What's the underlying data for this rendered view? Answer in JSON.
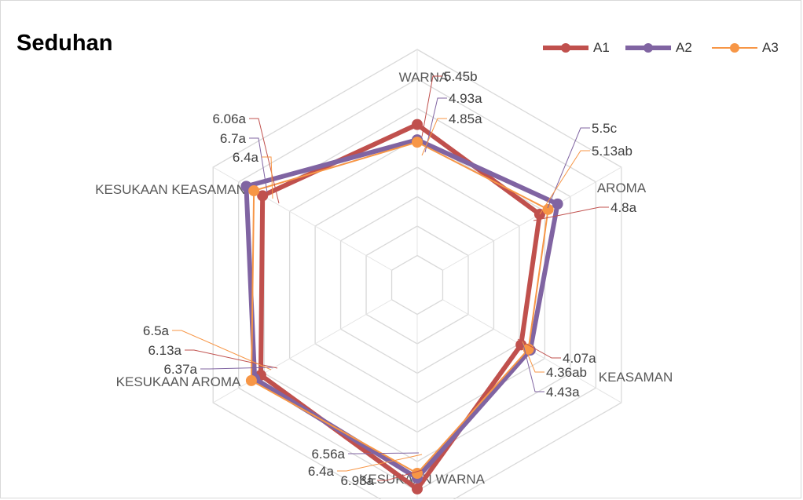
{
  "chart_data": {
    "type": "radar",
    "title": "Seduhan",
    "categories": [
      "WARNA",
      "AROMA",
      "KEASAMAN",
      "KESUKAAN WARNA",
      "KESUKAAN AROMA",
      "KESUKAAN KEASAMAN"
    ],
    "rmin": 0,
    "rmax": 8,
    "ring_count": 8,
    "series": [
      {
        "name": "A1",
        "color": "#c0504d",
        "values": [
          5.45,
          4.8,
          4.07,
          6.93,
          6.13,
          6.06
        ],
        "labels": [
          "5.45b",
          "4.8a",
          "4.07a",
          "6.93a",
          "6.13a",
          "6.06a"
        ]
      },
      {
        "name": "A2",
        "color": "#8064a2",
        "values": [
          4.93,
          5.5,
          4.43,
          6.56,
          6.37,
          6.7
        ],
        "labels": [
          "4.93a",
          "5.5c",
          "4.43a",
          "6.56a",
          "6.37a",
          "6.7a"
        ]
      },
      {
        "name": "A3",
        "color": "#f79646",
        "values": [
          4.85,
          5.13,
          4.36,
          6.4,
          6.5,
          6.4
        ],
        "labels": [
          "4.85a",
          "5.13ab",
          "4.36ab",
          "6.4a",
          "6.5a",
          "6.4a"
        ]
      }
    ],
    "legend_position": "top-right"
  }
}
